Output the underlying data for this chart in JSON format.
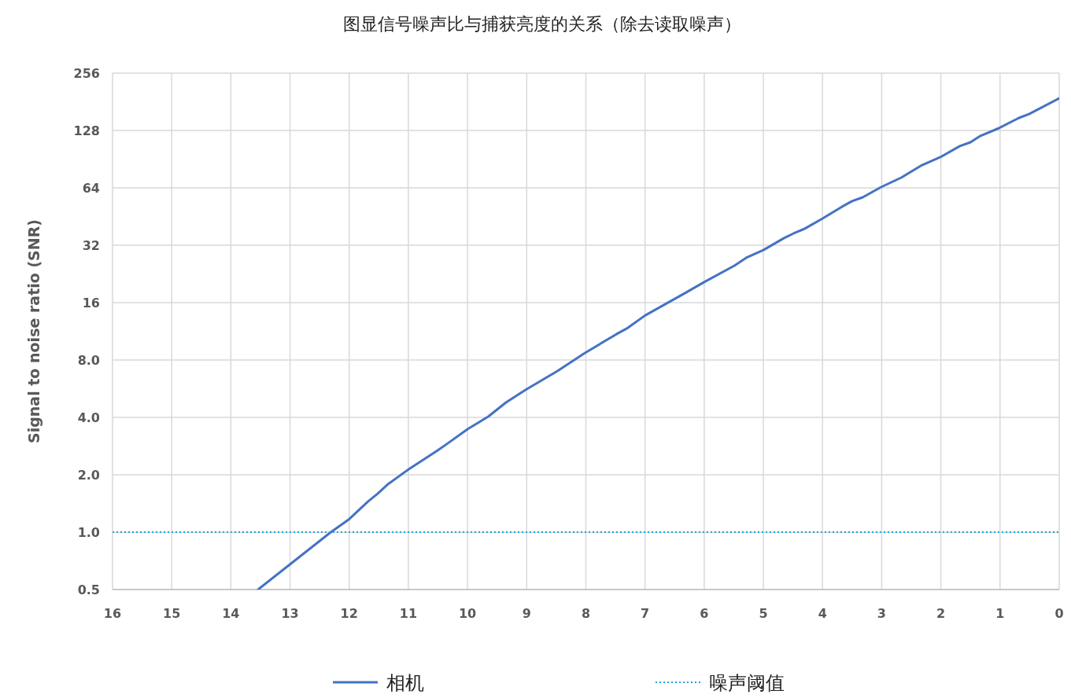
{
  "chart_data": {
    "type": "line",
    "title": "图显信号噪声比与捕获亮度的关系（除去读取噪声）",
    "ylabel": "Signal to noise ratio (SNR)",
    "log": "y",
    "grid": true,
    "legend": "bottom",
    "xlim": [
      16,
      0
    ],
    "xticks": [
      16,
      15,
      14,
      13,
      12,
      11,
      10,
      9,
      8,
      7,
      6,
      5,
      4,
      3,
      2,
      1,
      0
    ],
    "ylim": [
      0.5,
      256
    ],
    "yticks": [
      {
        "value": 0.5,
        "label": "0.5"
      },
      {
        "value": 1,
        "label": "1.0"
      },
      {
        "value": 2,
        "label": "2.0"
      },
      {
        "value": 4,
        "label": "4.0"
      },
      {
        "value": 8,
        "label": "8.0"
      },
      16,
      32,
      64,
      128,
      256
    ],
    "series": [
      {
        "name": "相机",
        "color": "#4472c4",
        "line_style": "solid",
        "x": [
          13.54,
          12.31,
          12.0,
          11.68,
          11.52,
          11.34,
          11.01,
          10.51,
          10.35,
          10.0,
          9.65,
          9.35,
          9.02,
          8.48,
          8.02,
          7.49,
          7.29,
          7.0,
          6.49,
          6.33,
          6.0,
          5.49,
          5.29,
          5.0,
          4.65,
          4.49,
          4.3,
          4.0,
          3.67,
          3.5,
          3.32,
          3.01,
          2.67,
          2.34,
          2.01,
          1.68,
          1.5,
          1.33,
          1.01,
          0.68,
          0.51,
          0
        ],
        "values": [
          0.5,
          1.0,
          1.17,
          1.45,
          1.59,
          1.79,
          2.12,
          2.68,
          2.9,
          3.47,
          4.04,
          4.79,
          5.58,
          7.0,
          8.7,
          10.9,
          11.8,
          13.7,
          16.8,
          17.9,
          20.5,
          25,
          27.5,
          30.2,
          34.9,
          36.9,
          39.1,
          44.2,
          51,
          54.5,
          57.1,
          64.6,
          72.4,
          83.5,
          92.7,
          106,
          111,
          120,
          132,
          149,
          156,
          189
        ]
      },
      {
        "name": "噪声阈值",
        "color": "#1aa7e0",
        "line_style": "dotted",
        "x": [
          16,
          0
        ],
        "values": [
          1,
          1
        ]
      }
    ]
  }
}
